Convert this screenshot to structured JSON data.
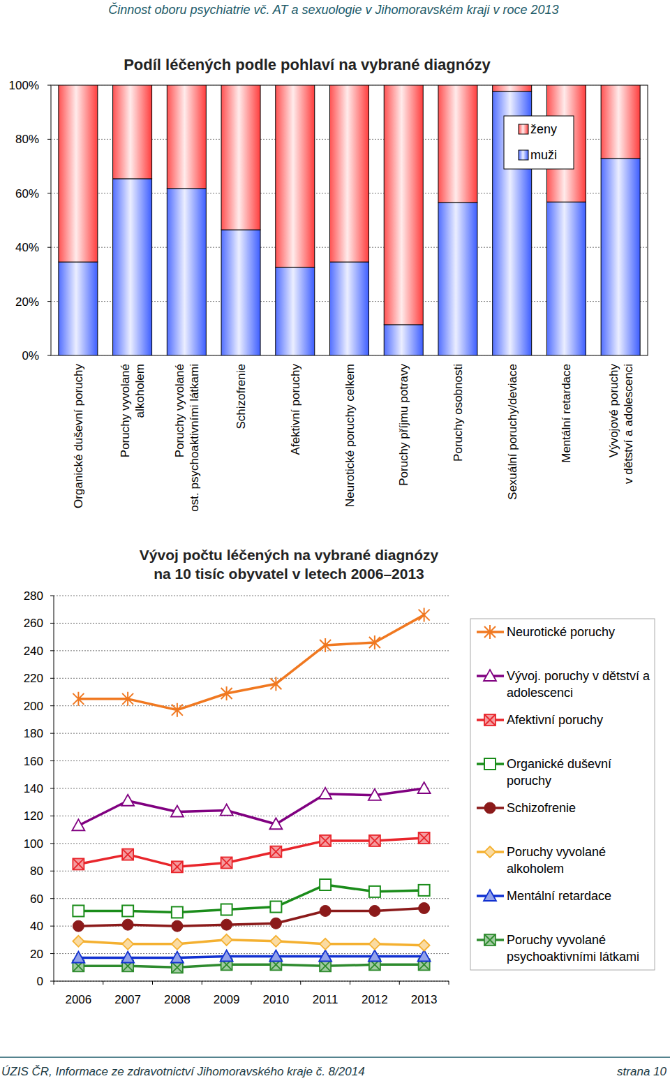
{
  "page": {
    "header": "Činnost oboru psychiatrie vč. AT a sexuologie v Jihomoravském kraji v roce 2013",
    "footer_left": "ÚZIS ČR, Informace ze zdravotnictví Jihomoravského kraje č. 8/2014",
    "footer_right": "strana 10"
  },
  "chart_data": [
    {
      "type": "bar",
      "title": "Podíl léčených podle pohlaví na vybrané diagnózy",
      "categories": [
        "Organické duševní poruchy",
        "Poruchy vyvolané\nalkoholem",
        "Poruchy vyvolané\nost. psychoaktivními látkami",
        "Schizofrenie",
        "Afektivní poruchy",
        "Neurotické poruchy celkem",
        "Poruchy příjmu potravy",
        "Poruchy osobnosti",
        "Sexuální poruchy/deviace",
        "Mentální retardace",
        "Vývojové poruchy\nv dětství a adolescenci"
      ],
      "series": [
        {
          "name": "muži",
          "color": "#3355ff",
          "values": [
            34.6,
            65.4,
            61.8,
            46.5,
            32.6,
            34.6,
            11.4,
            56.6,
            97.7,
            56.8,
            72.9
          ]
        },
        {
          "name": "ženy",
          "color": "#ff3333",
          "values": [
            65.4,
            34.6,
            38.2,
            53.5,
            67.4,
            65.4,
            88.6,
            43.4,
            2.3,
            43.2,
            27.1
          ]
        }
      ],
      "stacked": true,
      "ylim": [
        0,
        100
      ],
      "yticks": [
        {
          "value": 0,
          "label": "0%"
        },
        {
          "value": 20,
          "label": "20%"
        },
        {
          "value": 40,
          "label": "40%"
        },
        {
          "value": 60,
          "label": "60%"
        },
        {
          "value": 80,
          "label": "80%"
        },
        {
          "value": 100,
          "label": "100%"
        }
      ],
      "grid": true,
      "legend": "top-right"
    },
    {
      "type": "line",
      "title": "Vývoj počtu léčených na vybrané diagnózy\nna 10 tisíc obyvatel v letech 2006–2013",
      "categories": [
        "2006",
        "2007",
        "2008",
        "2009",
        "2010",
        "2011",
        "2012",
        "2013"
      ],
      "series": [
        {
          "name": "Neurotické poruchy",
          "color": "#f07820",
          "marker": "star",
          "values": [
            205,
            205,
            197,
            209,
            216,
            244,
            246,
            266
          ]
        },
        {
          "name": "Vývoj. poruchy v dětství a\nadolescenci",
          "color": "#800080",
          "marker": "triangle-open",
          "values": [
            113,
            131,
            123,
            124,
            114,
            136,
            135,
            140
          ]
        },
        {
          "name": "Afektivní poruchy",
          "color": "#e8252b",
          "marker": "square-x",
          "values": [
            85,
            92,
            83,
            86,
            94,
            102,
            102,
            104
          ]
        },
        {
          "name": "Organické duševní\nporuchy",
          "color": "#1a8c1a",
          "marker": "square-open",
          "values": [
            51,
            51,
            50,
            52,
            54,
            70,
            65,
            66
          ]
        },
        {
          "name": "Schizofrenie",
          "color": "#8b1a1a",
          "marker": "circle",
          "values": [
            40,
            41,
            40,
            41,
            42,
            51,
            51,
            53
          ]
        },
        {
          "name": "Poruchy vyvolané\nalkoholem",
          "color": "#f4b030",
          "marker": "diamond",
          "values": [
            29,
            27,
            27,
            30,
            29,
            27,
            27,
            26
          ]
        },
        {
          "name": "Mentální retardace",
          "color": "#1030d0",
          "marker": "triangle",
          "values": [
            17,
            17,
            17,
            18,
            18,
            18,
            18,
            18
          ]
        },
        {
          "name": "Poruchy vyvolané\npsychoaktivními látkami",
          "color": "#2e8b2e",
          "marker": "square-x",
          "values": [
            11,
            11,
            10,
            12,
            12,
            11,
            12,
            12
          ]
        }
      ],
      "ylim": [
        0,
        280
      ],
      "yticks": [
        0,
        20,
        40,
        60,
        80,
        100,
        120,
        140,
        160,
        180,
        200,
        220,
        240,
        260,
        280
      ],
      "grid": true,
      "legend": "right"
    }
  ]
}
